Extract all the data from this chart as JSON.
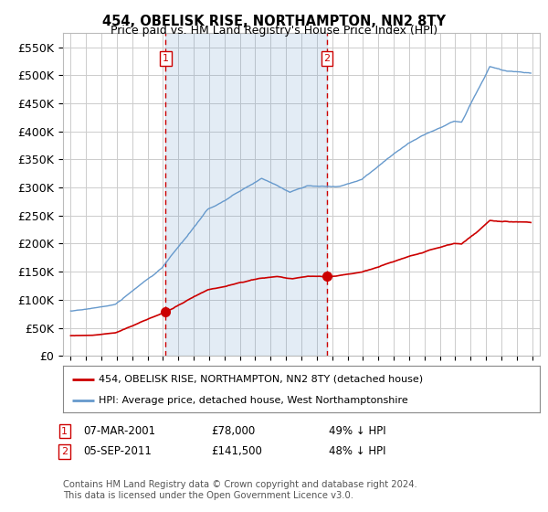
{
  "title": "454, OBELISK RISE, NORTHAMPTON, NN2 8TY",
  "subtitle": "Price paid vs. HM Land Registry's House Price Index (HPI)",
  "ylim": [
    0,
    575000
  ],
  "yticks": [
    0,
    50000,
    100000,
    150000,
    200000,
    250000,
    300000,
    350000,
    400000,
    450000,
    500000,
    550000
  ],
  "marker1_year": 2001.17,
  "marker2_year": 2011.67,
  "marker1_price": 78000,
  "marker2_price": 141500,
  "red_line_color": "#cc0000",
  "blue_line_color": "#6699cc",
  "blue_fill_color": "#ddeeff",
  "grid_color": "#cccccc",
  "bg_color": "#ffffff",
  "legend_label_red": "454, OBELISK RISE, NORTHAMPTON, NN2 8TY (detached house)",
  "legend_label_blue": "HPI: Average price, detached house, West Northamptonshire",
  "footer": "Contains HM Land Registry data © Crown copyright and database right 2024.\nThis data is licensed under the Open Government Licence v3.0.",
  "note1_label": "1",
  "note1_date": "07-MAR-2001",
  "note1_price": "£78,000",
  "note1_pct": "49% ↓ HPI",
  "note2_label": "2",
  "note2_date": "05-SEP-2011",
  "note2_price": "£141,500",
  "note2_pct": "48% ↓ HPI"
}
